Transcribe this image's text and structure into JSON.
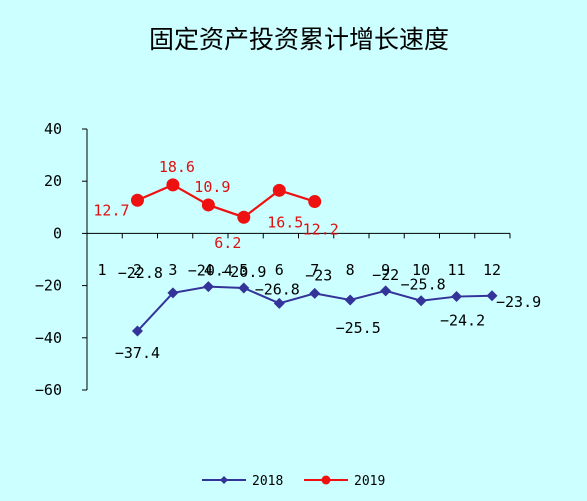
{
  "chart_data": {
    "type": "line",
    "title": "固定资产投资累计增长速度",
    "categories": [
      "1",
      "2",
      "3",
      "4",
      "5",
      "6",
      "7",
      "8",
      "9",
      "10",
      "11",
      "12"
    ],
    "ylim": [
      -60,
      40
    ],
    "yticks": [
      -60,
      -40,
      -20,
      0,
      20,
      40
    ],
    "ytick_labels": [
      "−60",
      "−40",
      "−20",
      "0",
      "20",
      "40"
    ],
    "grid": false,
    "legend_position": "bottom",
    "series": [
      {
        "name": "2018",
        "color": "#333399",
        "marker": "diamond",
        "values": [
          null,
          -37.4,
          -22.8,
          -20.4,
          -20.9,
          -26.8,
          -23,
          -25.5,
          -22,
          -25.8,
          -24.2,
          -23.9
        ],
        "labels": [
          "",
          "−37.4",
          "−22.8",
          "−20.4",
          "−20.9",
          "−26.8",
          "−23",
          "−25.5",
          "−22",
          "−25.8",
          "−24.2",
          "−23.9"
        ]
      },
      {
        "name": "2019",
        "color": "#ee1111",
        "marker": "circle",
        "values": [
          null,
          12.7,
          18.6,
          10.9,
          6.2,
          16.5,
          12.2,
          null,
          null,
          null,
          null,
          null
        ],
        "labels": [
          "",
          "12.7",
          "18.6",
          "10.9",
          "6.2",
          "16.5",
          "12.2",
          "",
          "",
          "",
          "",
          ""
        ]
      }
    ]
  }
}
